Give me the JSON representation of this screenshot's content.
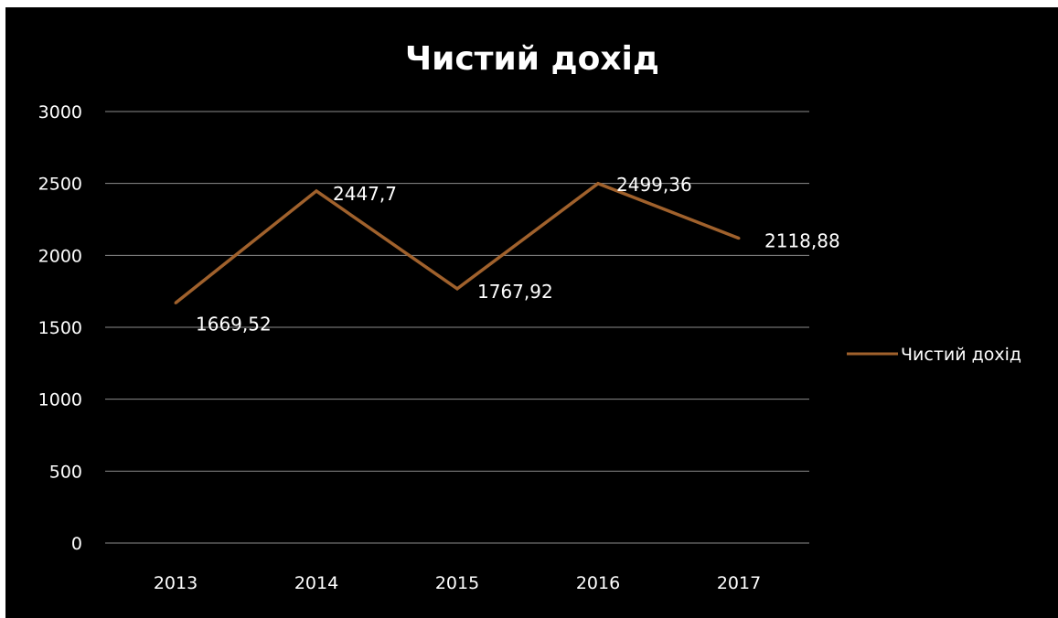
{
  "chart_data": {
    "type": "line",
    "title": "Чистий дохід",
    "xlabel": "",
    "ylabel": "",
    "categories": [
      "2013",
      "2014",
      "2015",
      "2016",
      "2017"
    ],
    "series": [
      {
        "name": "Чистий дохід",
        "values": [
          1669.52,
          2447.7,
          1767.92,
          2499.36,
          2118.88
        ],
        "data_labels": [
          "1669,52",
          "2447,7",
          "1767,92",
          "2499,36",
          "2118,88"
        ],
        "color": "#a0612c"
      }
    ],
    "ylim": [
      0,
      3000
    ],
    "yticks": [
      0,
      500,
      1000,
      1500,
      2000,
      2500,
      3000
    ],
    "ytick_labels": [
      "0",
      "500",
      "1000",
      "1500",
      "2000",
      "2500",
      "3000"
    ],
    "grid": true,
    "legend_position": "right",
    "background_color": "#000000",
    "text_color": "#ffffff",
    "grid_color": "#8c8c8c"
  }
}
